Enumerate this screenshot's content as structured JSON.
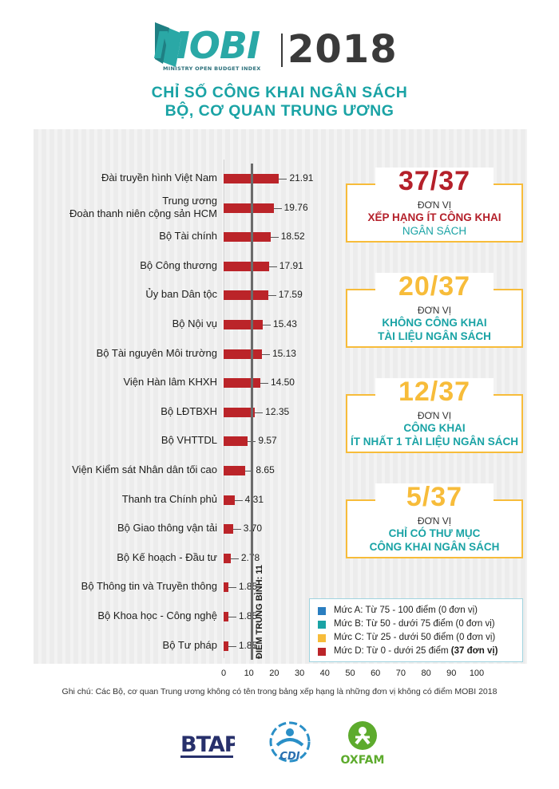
{
  "header": {
    "logo_text": "MOBI",
    "logo_subtitle": "MINISTRY OPEN BUDGET INDEX",
    "year": "2018",
    "title_line1": "CHỈ SỐ CÔNG KHAI NGÂN SÁCH",
    "title_line2": "BỘ, CƠ QUAN TRUNG ƯƠNG"
  },
  "colors": {
    "bar": "#bb2429",
    "accent_teal": "#1aa3a5",
    "accent_yellow": "#f7bc3a",
    "accent_red": "#b4202a",
    "level_a": "#2a7ec0",
    "level_b": "#1aa3a5",
    "level_c": "#f7bc3a",
    "level_d": "#bb2429"
  },
  "chart_data": {
    "type": "bar",
    "orientation": "horizontal",
    "categories": [
      [
        "Đài truyền hình Việt Nam"
      ],
      [
        "Trung ương",
        "Đoàn thanh niên cộng sản HCM"
      ],
      [
        "Bộ Tài chính"
      ],
      [
        "Bộ Công thương"
      ],
      [
        "Ủy ban Dân tộc"
      ],
      [
        "Bộ Nội vụ"
      ],
      [
        "Bộ Tài nguyên Môi trường"
      ],
      [
        "Viện Hàn lâm KHXH"
      ],
      [
        "Bộ LĐTBXH"
      ],
      [
        "Bộ VHTTDL"
      ],
      [
        "Viện Kiểm sát Nhân dân tối cao"
      ],
      [
        "Thanh tra Chính phủ"
      ],
      [
        "Bộ Giao thông vận tải"
      ],
      [
        "Bộ Kế hoạch - Đầu tư"
      ],
      [
        "Bộ Thông tin và Truyền thông"
      ],
      [
        "Bộ Khoa học - Công nghệ"
      ],
      [
        "Bộ Tư pháp"
      ]
    ],
    "values": [
      21.91,
      19.76,
      18.52,
      17.91,
      17.59,
      15.43,
      15.13,
      14.5,
      12.35,
      9.57,
      8.65,
      4.31,
      3.7,
      2.78,
      1.85,
      1.85,
      1.85
    ],
    "value_labels": [
      "21.91",
      "19.76",
      "18.52",
      "17.91",
      "17.59",
      "15.43",
      "15.13",
      "14.50",
      "12.35",
      "9.57",
      "8.65",
      "4.31",
      "3.70",
      "2.78",
      "1.85",
      "1.85",
      "1.85"
    ],
    "xlim": [
      0,
      100
    ],
    "x_ticks": [
      "0",
      "10",
      "20",
      "30",
      "40",
      "50",
      "60",
      "70",
      "80",
      "90",
      "100"
    ],
    "average": 11,
    "average_label": "ĐIỂM TRUNG BÌNH: 11",
    "legend": [
      {
        "text": "Mức A: Từ 75 - 100 điểm (0 đơn vị)",
        "color": "#2a7ec0"
      },
      {
        "text": "Mức B: Từ 50 - dưới 75 điểm (0 đơn vị)",
        "color": "#1aa3a5"
      },
      {
        "text": "Mức C: Từ 25 - dưới 50 điểm (0 đơn vị)",
        "color": "#f7bc3a"
      },
      {
        "text": "Mức D: Từ 0 - dưới 25 điểm",
        "bold_text": "(37 đơn vị)",
        "color": "#bb2429"
      }
    ],
    "legend_placement": "bottom-right"
  },
  "stats": [
    {
      "number": "37/37",
      "unit": "ĐƠN VỊ",
      "line1": "XẾP HẠNG ÍT CÔNG KHAI",
      "line2": "NGÂN SÁCH",
      "number_color": "#b4202a",
      "line1_color": "#b4202a",
      "line2_color": "#1aa3a5"
    },
    {
      "number": "20/37",
      "unit": "ĐƠN VỊ",
      "line1": "KHÔNG CÔNG KHAI",
      "line2": "TÀI LIỆU NGÂN SÁCH",
      "number_color": "#f7bc3a",
      "line1_color": "#1aa3a5",
      "line2_color": "#1aa3a5"
    },
    {
      "number": "12/37",
      "unit": "ĐƠN VỊ",
      "line1": "CÔNG KHAI",
      "line2": "ÍT NHẤT 1 TÀI LIỆU NGÂN SÁCH",
      "number_color": "#f7bc3a",
      "line1_color": "#1aa3a5",
      "line2_color": "#1aa3a5"
    },
    {
      "number": "5/37",
      "unit": "ĐƠN VỊ",
      "line1": "CHỈ CÓ THƯ MỤC",
      "line2": "CÔNG KHAI NGÂN SÁCH",
      "number_color": "#f7bc3a",
      "line1_color": "#1aa3a5",
      "line2_color": "#1aa3a5"
    }
  ],
  "footer": {
    "note": "Ghi chú: Các Bộ, cơ quan Trung ương không có tên trong bảng xếp hạng là những đơn vị không có điểm MOBI 2018",
    "logos": {
      "btap": "BTAP",
      "cdi": "CDI",
      "oxfam": "OXFAM"
    }
  }
}
